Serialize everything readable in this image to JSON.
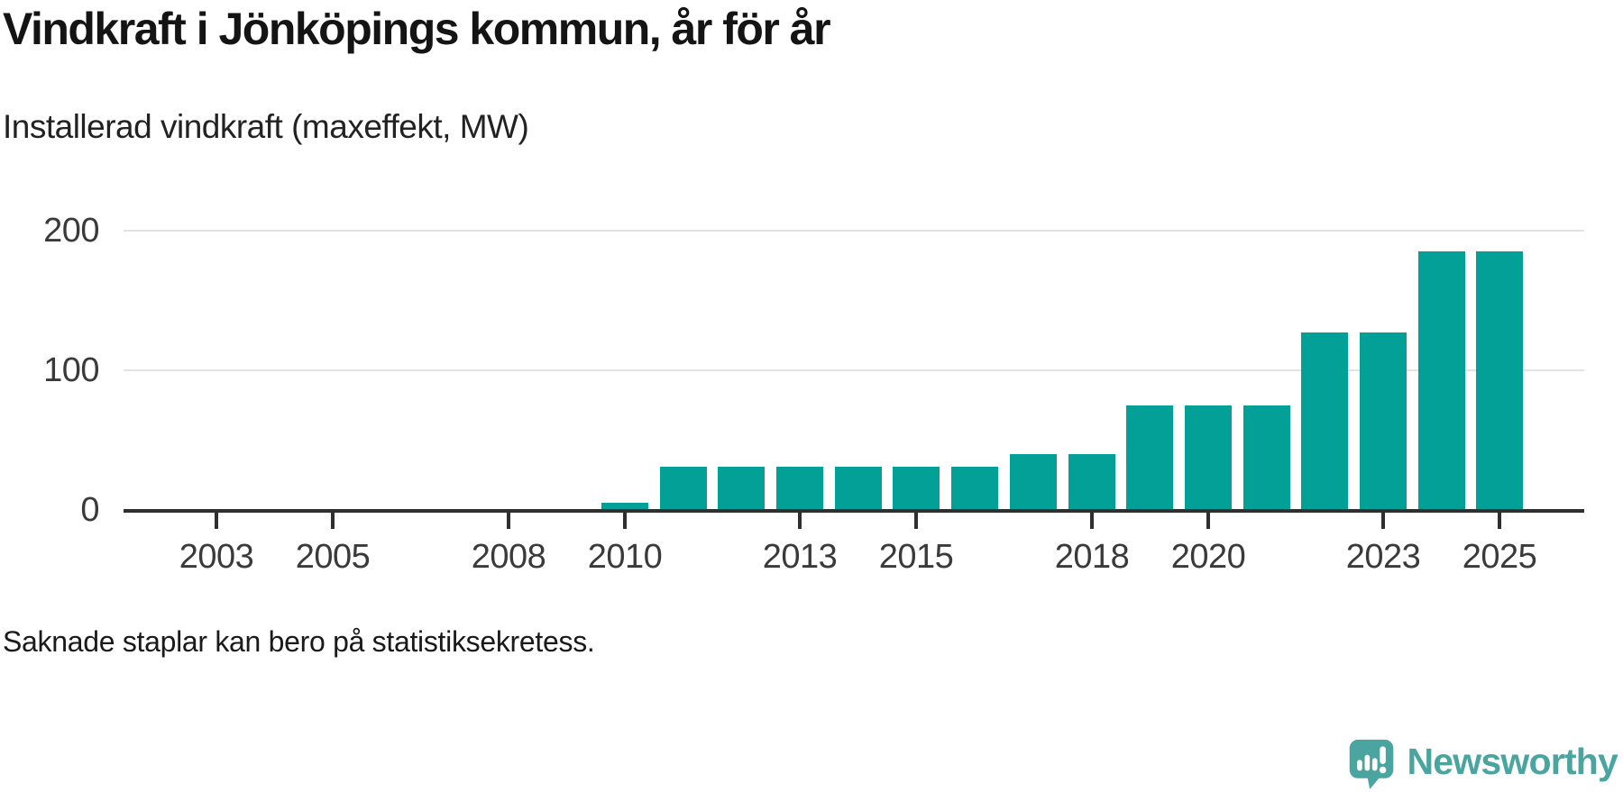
{
  "header": {
    "title": "Vindkraft i Jönköpings kommun, år för år",
    "subtitle": "Installerad vindkraft (maxeffekt, MW)"
  },
  "chart_data": {
    "type": "bar",
    "title": "Vindkraft i Jönköpings kommun, år för år",
    "subtitle": "Installerad vindkraft (maxeffekt, MW)",
    "unit": "MW",
    "categories": [
      2010,
      2011,
      2012,
      2013,
      2014,
      2015,
      2016,
      2017,
      2018,
      2019,
      2020,
      2021,
      2022,
      2023,
      2024,
      2025
    ],
    "values": [
      5,
      31,
      31,
      31,
      31,
      31,
      31,
      40,
      40,
      75,
      75,
      75,
      127,
      127,
      185,
      185
    ],
    "series": [
      {
        "name": "Installerad vindkraft (maxeffekt, MW)",
        "values": [
          5,
          31,
          31,
          31,
          31,
          31,
          31,
          40,
          40,
          75,
          75,
          75,
          127,
          127,
          185,
          185
        ]
      }
    ],
    "x_domain": [
      2002,
      2026
    ],
    "x_ticks": [
      2003,
      2005,
      2008,
      2010,
      2013,
      2015,
      2018,
      2020,
      2023,
      2025
    ],
    "y_ticks": [
      0,
      100,
      200
    ],
    "ylim": [
      0,
      230
    ],
    "grid": "horizontal-only",
    "legend": "none",
    "missing_years_note": "2002-2009 have no bars",
    "bar_color": "#03a098",
    "axis_color": "#2f2f2f",
    "grid_color": "#e2e2e2",
    "label_color": "#3a3a3a"
  },
  "footnote": {
    "text": "Saknade staplar kan bero på statistiksekretess."
  },
  "branding": {
    "name": "Newsworthy",
    "color": "#4aa5a0",
    "icon": "newsworthy-chart-bubble-icon"
  }
}
